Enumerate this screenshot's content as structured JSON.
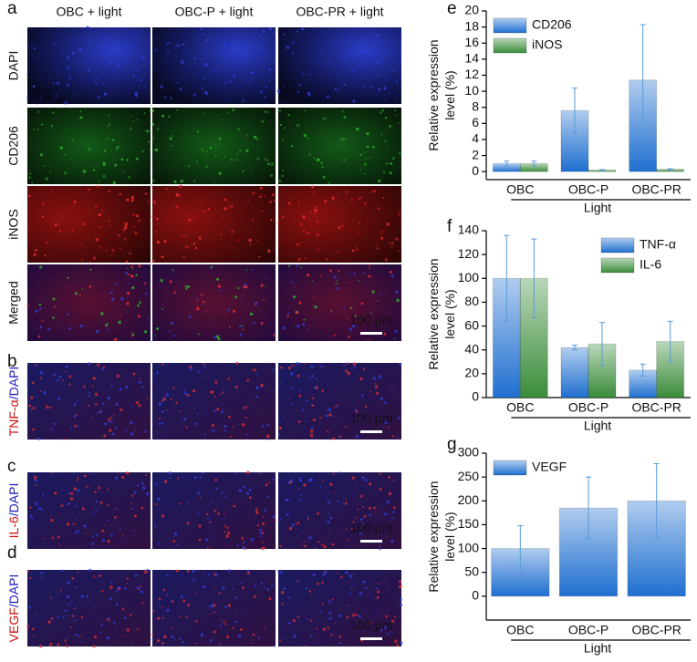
{
  "panels": [
    "a",
    "b",
    "c",
    "d",
    "e",
    "f",
    "g"
  ],
  "micrographs": {
    "columns": [
      "OBC + light",
      "OBC-P + light",
      "OBC-PR + light"
    ],
    "rows_a": [
      "DAPI",
      "CD206",
      "iNOS",
      "Merged"
    ],
    "row_b": [
      "TNF-α",
      "/DAPI"
    ],
    "row_c": [
      "IL-6",
      "/DAPI"
    ],
    "row_d": [
      "VEGF",
      "/DAPI"
    ],
    "scale_bar": "100 μm"
  },
  "chart_data": [
    {
      "type": "bar",
      "ylabel": [
        "Relative expression",
        "level (%)"
      ],
      "xlabel": "Light",
      "categories": [
        "OBC",
        "OBC-P",
        "OBC-PR"
      ],
      "series": [
        {
          "name": "CD206",
          "color": "#1f6fd0",
          "values": [
            1.0,
            7.6,
            11.4
          ],
          "errors": [
            0.3,
            2.8,
            6.9
          ]
        },
        {
          "name": "iNOS",
          "color": "#3a8c3a",
          "values": [
            1.0,
            0.2,
            0.3
          ],
          "errors": [
            0.3,
            0.05,
            0.05
          ]
        }
      ],
      "ylim": [
        -1,
        20
      ],
      "yticks": [
        0,
        2,
        4,
        6,
        8,
        10,
        12,
        14,
        16,
        18,
        20
      ],
      "legend": "top-left"
    },
    {
      "type": "bar",
      "ylabel": [
        "Relative expression",
        "level (%)"
      ],
      "xlabel": "Light",
      "categories": [
        "OBC",
        "OBC-P",
        "OBC-PR"
      ],
      "series": [
        {
          "name": "TNF-α",
          "color": "#1f6fd0",
          "values": [
            100,
            42,
            23
          ],
          "errors": [
            36,
            2,
            5
          ]
        },
        {
          "name": "IL-6",
          "color": "#3a8c3a",
          "values": [
            100,
            45,
            47
          ],
          "errors": [
            33,
            18,
            17
          ]
        }
      ],
      "ylim": [
        0,
        140
      ],
      "yticks": [
        0,
        20,
        40,
        60,
        80,
        100,
        120,
        140
      ],
      "legend": "top-right"
    },
    {
      "type": "bar",
      "ylabel": [
        "Relative expression",
        "level (%)"
      ],
      "xlabel": "Light",
      "categories": [
        "OBC",
        "OBC-P",
        "OBC-PR"
      ],
      "series": [
        {
          "name": "VEGF",
          "color": "#1f6fd0",
          "values": [
            100,
            185,
            200
          ],
          "errors": [
            48,
            65,
            78
          ]
        }
      ],
      "ylim": [
        -50,
        300
      ],
      "yticks": [
        0,
        50,
        100,
        150,
        200,
        250,
        300
      ],
      "legend": "top-left"
    }
  ]
}
